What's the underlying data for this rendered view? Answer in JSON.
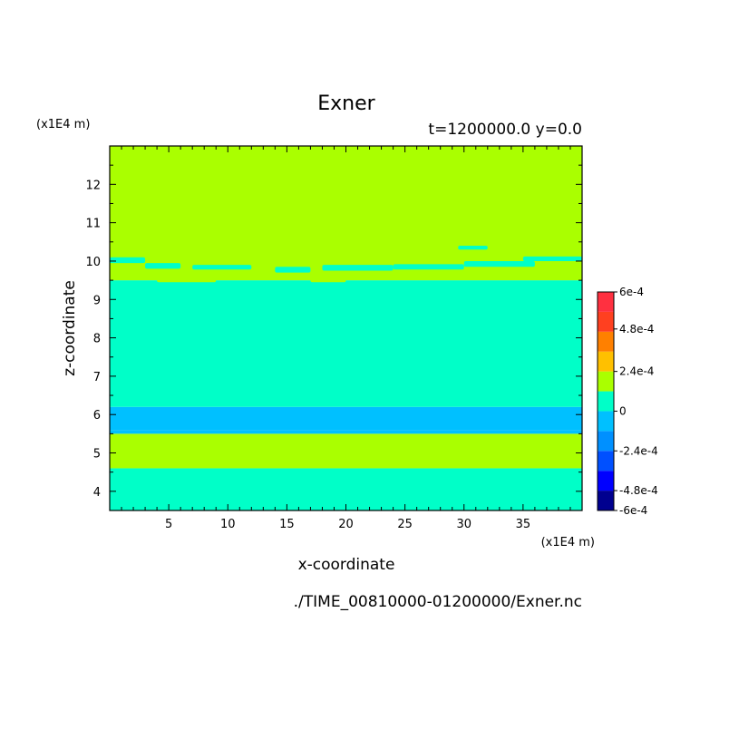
{
  "chart_data": {
    "type": "heatmap",
    "title": "Exner",
    "subtitle": "t=1200000.0 y=0.0",
    "xlabel": "x-coordinate",
    "ylabel": "z-coordinate",
    "x_unit": "(x1E4 m)",
    "y_unit": "(x1E4 m)",
    "source_file": "./TIME_00810000-01200000/Exner.nc",
    "xlim": [
      0,
      40
    ],
    "ylim": [
      3.5,
      13
    ],
    "x_ticks": [
      5,
      10,
      15,
      20,
      25,
      30,
      35
    ],
    "y_ticks": [
      4,
      5,
      6,
      7,
      8,
      9,
      10,
      11,
      12
    ],
    "levels": [
      {
        "min": -0.0006,
        "max": -0.00048,
        "color": "#00008f"
      },
      {
        "min": -0.00048,
        "max": -0.00036,
        "color": "#0000ff"
      },
      {
        "min": -0.00036,
        "max": -0.00024,
        "color": "#0050ff"
      },
      {
        "min": -0.00024,
        "max": -0.00012,
        "color": "#0090ff"
      },
      {
        "min": -0.00012,
        "max": 0,
        "color": "#00c0ff"
      },
      {
        "min": 0,
        "max": 0.00012,
        "color": "#00ffc8"
      },
      {
        "min": 0.00012,
        "max": 0.00024,
        "color": "#aaff00"
      },
      {
        "min": 0.00024,
        "max": 0.00036,
        "color": "#ffc000"
      },
      {
        "min": 0.00036,
        "max": 0.00048,
        "color": "#ff8000"
      },
      {
        "min": 0.00048,
        "max": 0.0006,
        "color": "#ff4020"
      },
      {
        "min": 0.0006,
        "max": 0.00072,
        "color": "#ff3040"
      }
    ],
    "colorbar_labels": [
      "6e-4",
      "4.8e-4",
      "2.4e-4",
      "0",
      "-2.4e-4",
      "-4.8e-4",
      "-6e-4"
    ],
    "bands": [
      {
        "z_min": 3.5,
        "z_max": 4.6,
        "color": "#00ffc8"
      },
      {
        "z_min": 4.6,
        "z_max": 5.5,
        "color": "#aaff00"
      },
      {
        "z_min": 5.5,
        "z_max": 5.6,
        "color": "#00c0ff"
      },
      {
        "z_min": 5.6,
        "z_max": 6.2,
        "color": "#00c0ff"
      },
      {
        "z_min": 6.2,
        "z_max": 9.5,
        "color": "#00ffc8"
      },
      {
        "z_min": 9.5,
        "z_max": 13.0,
        "color": "#aaff00"
      }
    ],
    "patches": [
      {
        "x": [
          0.0,
          3.0
        ],
        "z": [
          9.95,
          10.1
        ],
        "color": "#00ffc8"
      },
      {
        "x": [
          3.0,
          6.0
        ],
        "z": [
          9.8,
          9.95
        ],
        "color": "#00ffc8"
      },
      {
        "x": [
          7.0,
          12.0
        ],
        "z": [
          9.78,
          9.9
        ],
        "color": "#00ffc8"
      },
      {
        "x": [
          14.0,
          17.0
        ],
        "z": [
          9.7,
          9.85
        ],
        "color": "#00ffc8"
      },
      {
        "x": [
          18.0,
          24.0
        ],
        "z": [
          9.75,
          9.9
        ],
        "color": "#00ffc8"
      },
      {
        "x": [
          24.0,
          30.0
        ],
        "z": [
          9.78,
          9.92
        ],
        "color": "#00ffc8"
      },
      {
        "x": [
          30.0,
          36.0
        ],
        "z": [
          9.85,
          10.0
        ],
        "color": "#00ffc8"
      },
      {
        "x": [
          35.0,
          40.0
        ],
        "z": [
          10.0,
          10.12
        ],
        "color": "#00ffc8"
      },
      {
        "x": [
          29.5,
          32.0
        ],
        "z": [
          10.3,
          10.4
        ],
        "color": "#00ffc8"
      },
      {
        "x": [
          22.0,
          26.0
        ],
        "z": [
          9.52,
          9.6
        ],
        "color": "#aaff00"
      },
      {
        "x": [
          4.0,
          9.0
        ],
        "z": [
          9.45,
          9.55
        ],
        "color": "#aaff00"
      },
      {
        "x": [
          17.0,
          20.0
        ],
        "z": [
          9.45,
          9.55
        ],
        "color": "#aaff00"
      }
    ]
  }
}
